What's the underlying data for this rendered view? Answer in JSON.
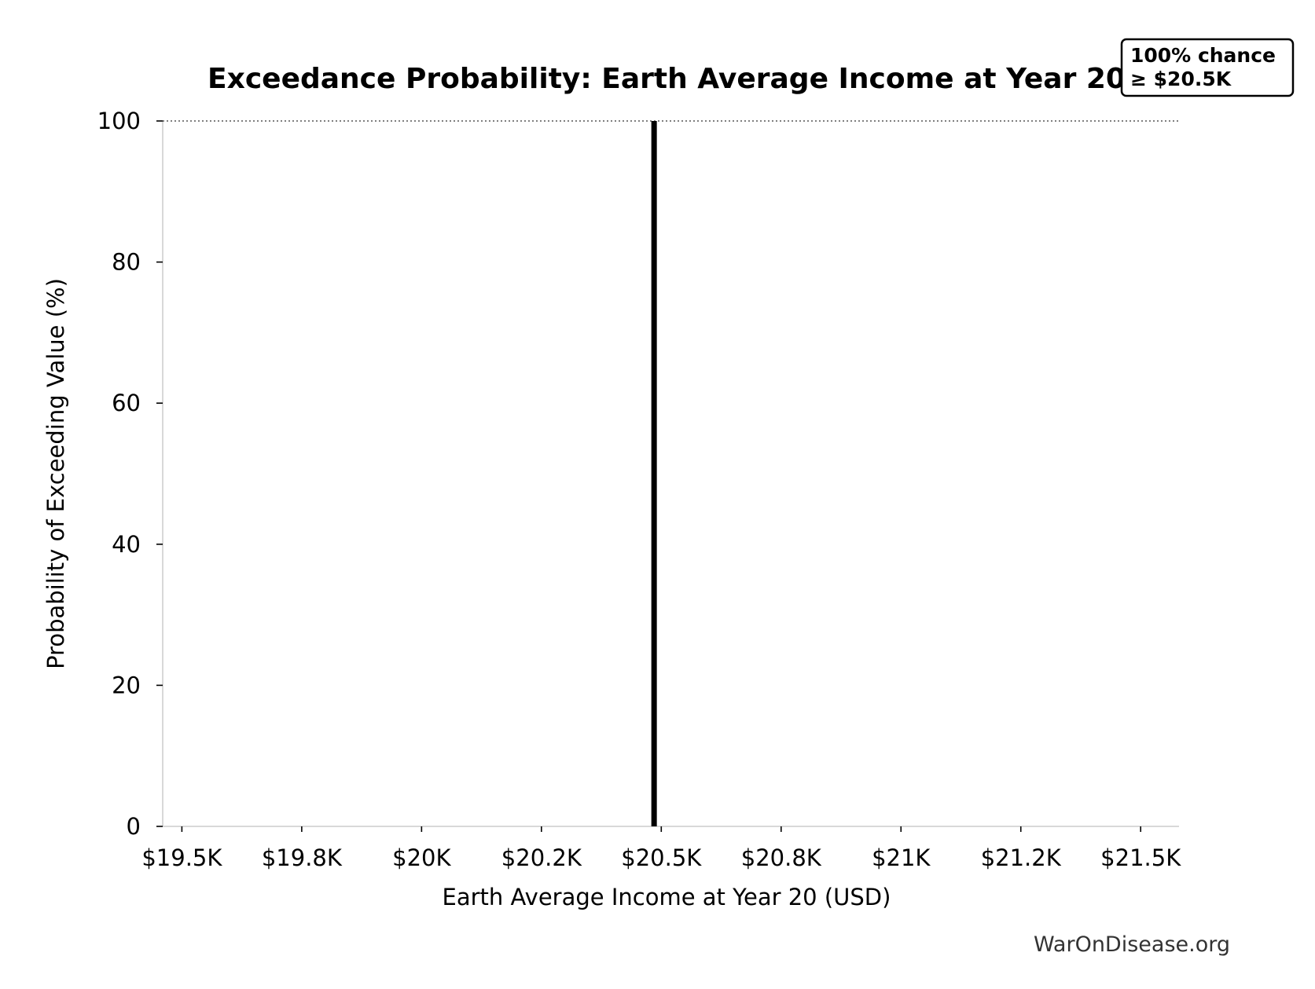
{
  "chart_data": {
    "type": "line",
    "title": "Exceedance Probability: Earth Average Income at Year 20",
    "xlabel": "Earth Average Income at Year 20 (USD)",
    "ylabel": "Probability of Exceeding Value (%)",
    "xlim": [
      19460,
      21580
    ],
    "ylim": [
      0,
      100
    ],
    "x_ticks": [
      {
        "value": 19500,
        "label": "$19.5K"
      },
      {
        "value": 19750,
        "label": "$19.8K"
      },
      {
        "value": 20000,
        "label": "$20K"
      },
      {
        "value": 20250,
        "label": "$20.2K"
      },
      {
        "value": 20500,
        "label": "$20.5K"
      },
      {
        "value": 20750,
        "label": "$20.8K"
      },
      {
        "value": 21000,
        "label": "$21K"
      },
      {
        "value": 21250,
        "label": "$21.2K"
      },
      {
        "value": 21500,
        "label": "$21.5K"
      }
    ],
    "y_ticks": [
      {
        "value": 0,
        "label": "0"
      },
      {
        "value": 20,
        "label": "20"
      },
      {
        "value": 40,
        "label": "40"
      },
      {
        "value": 60,
        "label": "60"
      },
      {
        "value": 80,
        "label": "80"
      },
      {
        "value": 100,
        "label": "100"
      }
    ],
    "series": [
      {
        "x": [
          20485,
          20485
        ],
        "y": [
          0,
          100
        ],
        "color": "#000000"
      }
    ],
    "reference_line": {
      "y": 100,
      "style": "dotted",
      "color": "#555555"
    },
    "annotation": {
      "line1": "100% chance",
      "line2": "≥ $20.5K"
    },
    "grid": false,
    "watermark": "WarOnDisease.org"
  }
}
